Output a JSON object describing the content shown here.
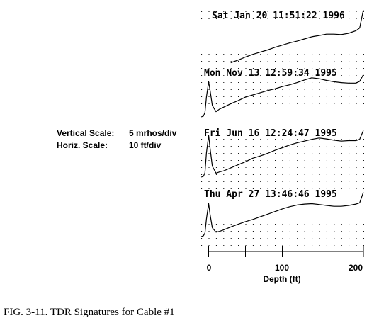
{
  "caption": "FIG. 3-11.  TDR Signatures for Cable #1",
  "scale_info": {
    "vertical_label": "Vertical Scale:",
    "vertical_value": "5 mrhos/div",
    "horizontal_label": "Horiz. Scale:",
    "horizontal_value": "10 ft/div"
  },
  "chart_data": {
    "type": "line",
    "xlabel": "Depth (ft)",
    "x_ticks": [
      "0",
      "100",
      "200"
    ],
    "xlim": [
      -12,
      210
    ],
    "grid": true,
    "series": [
      {
        "name": "Sat Jan 20 11:51:22 1996",
        "x": [
          30,
          40,
          50,
          60,
          70,
          80,
          90,
          100,
          110,
          120,
          130,
          140,
          150,
          160,
          170,
          180,
          190,
          200,
          205,
          210
        ],
        "y": [
          0.4,
          1.0,
          1.7,
          2.3,
          2.8,
          3.3,
          3.9,
          4.4,
          4.9,
          5.3,
          5.8,
          6.3,
          6.6,
          6.9,
          6.9,
          6.8,
          7.1,
          7.7,
          8.3,
          12.4
        ]
      },
      {
        "name": "Mon Nov 13 12:59:34 1995",
        "x": [
          -10,
          -7,
          -5,
          -3,
          0,
          2,
          5,
          10,
          15,
          20,
          30,
          40,
          50,
          60,
          70,
          80,
          90,
          100,
          110,
          120,
          130,
          140,
          150,
          160,
          170,
          180,
          190,
          200,
          205,
          210
        ],
        "y": [
          0,
          0.2,
          1.0,
          4.5,
          8.0,
          6.0,
          2.6,
          1.2,
          1.8,
          2.2,
          3.0,
          3.7,
          4.5,
          5.0,
          5.5,
          6.0,
          6.4,
          6.9,
          7.3,
          7.8,
          8.4,
          8.9,
          8.7,
          8.3,
          8.0,
          7.8,
          7.7,
          7.7,
          8.1,
          9.6
        ]
      },
      {
        "name": "Fri Jun 16 12:24:47 1995",
        "x": [
          -10,
          -7,
          -5,
          -3,
          0,
          2,
          5,
          10,
          15,
          20,
          30,
          40,
          50,
          60,
          70,
          80,
          90,
          100,
          110,
          120,
          130,
          140,
          150,
          160,
          170,
          180,
          190,
          200,
          205,
          210
        ],
        "y": [
          0,
          0.2,
          1.0,
          5.5,
          9.5,
          6.5,
          2.5,
          0.9,
          1.2,
          1.4,
          2.1,
          2.8,
          3.5,
          4.3,
          4.8,
          5.4,
          6.1,
          6.7,
          7.3,
          7.8,
          8.2,
          8.6,
          8.9,
          8.7,
          8.4,
          8.2,
          8.3,
          8.3,
          8.6,
          10.6
        ]
      },
      {
        "name": "Thu Apr 27 13:46:46 1995",
        "x": [
          -10,
          -7,
          -5,
          -3,
          0,
          2,
          5,
          10,
          15,
          20,
          30,
          40,
          50,
          60,
          70,
          80,
          90,
          100,
          110,
          120,
          130,
          140,
          150,
          160,
          170,
          180,
          190,
          200,
          205,
          210
        ],
        "y": [
          0,
          0.2,
          0.8,
          4.0,
          7.5,
          5.0,
          2.0,
          1.0,
          1.2,
          1.5,
          2.2,
          2.8,
          3.4,
          3.9,
          4.5,
          5.1,
          5.7,
          6.3,
          6.8,
          7.2,
          7.4,
          7.5,
          7.3,
          7.1,
          6.9,
          6.9,
          7.1,
          7.4,
          7.7,
          10.1
        ]
      }
    ]
  }
}
